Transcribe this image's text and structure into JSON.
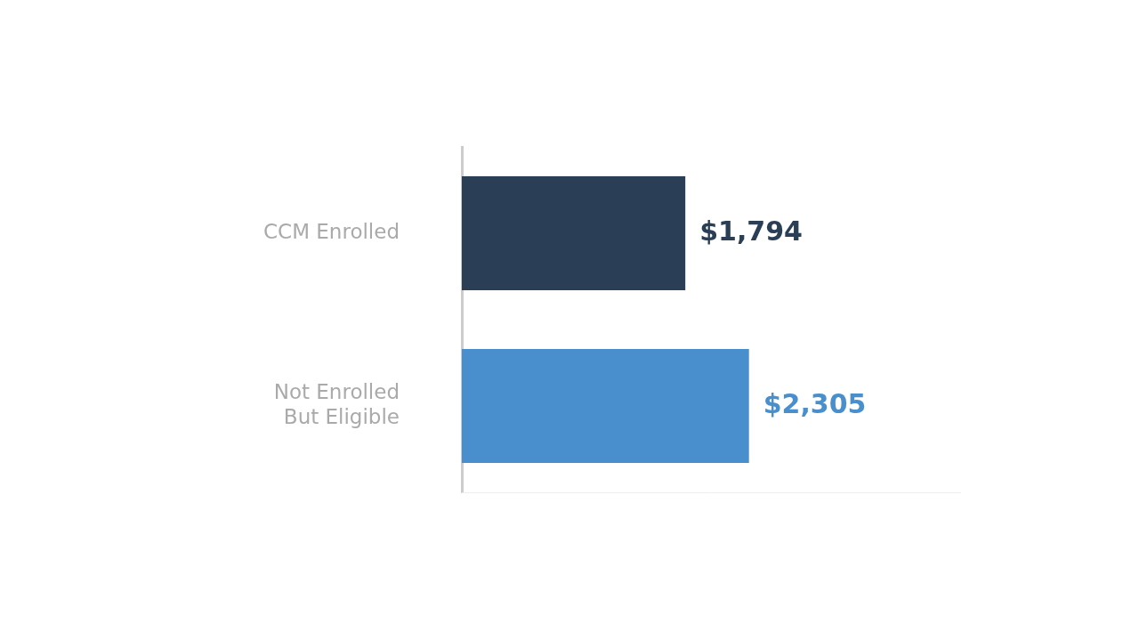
{
  "chart_data": {
    "type": "bar",
    "orientation": "horizontal",
    "categories": [
      "CCM Enrolled",
      "Not Enrolled But Eligible"
    ],
    "values": [
      1794,
      2305
    ],
    "value_labels": [
      "$1,794",
      "$2,305"
    ],
    "colors": [
      "#2a3f55",
      "#4a8fcd"
    ],
    "xlim": [
      0,
      4000
    ],
    "grid": false,
    "data_labels": true,
    "tick_labels": "y"
  }
}
